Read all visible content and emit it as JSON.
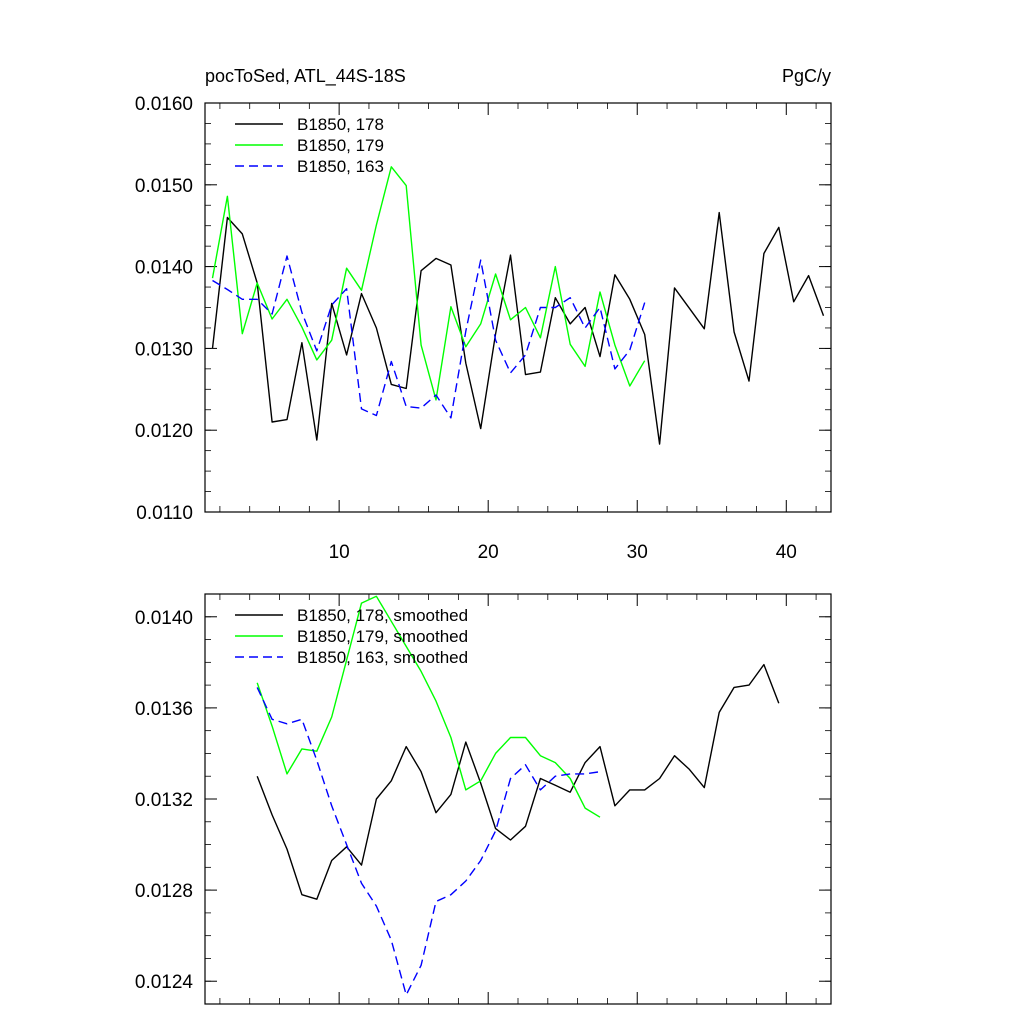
{
  "chart_data": [
    {
      "type": "line",
      "title": "pocToSed, ATL_44S-18S",
      "units": "PgC/y",
      "xlim": [
        1,
        43
      ],
      "ylim": [
        0.011,
        0.016
      ],
      "y_ticks": [
        "0.0110",
        "0.0120",
        "0.0130",
        "0.0140",
        "0.0150",
        "0.0160"
      ],
      "x_ticks": [
        "10",
        "20",
        "30",
        "40"
      ],
      "grid": false,
      "legend_position": "top-left",
      "series": [
        {
          "name": "B1850, 178",
          "color": "#000000",
          "dash": "solid",
          "x": [
            1.5,
            2.5,
            3.5,
            4.5,
            5.5,
            6.5,
            7.5,
            8.5,
            9.5,
            10.5,
            11.5,
            12.5,
            13.5,
            14.5,
            15.5,
            16.5,
            17.5,
            18.5,
            19.5,
            20.5,
            21.5,
            22.5,
            23.5,
            24.5,
            25.5,
            26.5,
            27.5,
            28.5,
            29.5,
            30.5,
            31.5,
            32.5,
            33.5,
            34.5,
            35.5,
            36.5,
            37.5,
            38.5,
            39.5,
            40.5,
            41.5,
            42.5
          ],
          "y": [
            0.013,
            0.0146,
            0.0144,
            0.0138,
            0.0121,
            0.01213,
            0.01307,
            0.01188,
            0.01355,
            0.01292,
            0.01367,
            0.01325,
            0.01256,
            0.01251,
            0.01395,
            0.0141,
            0.01402,
            0.01282,
            0.01202,
            0.01318,
            0.01414,
            0.01268,
            0.01271,
            0.01362,
            0.0133,
            0.0135,
            0.0129,
            0.0139,
            0.0136,
            0.01317,
            0.01183,
            0.01374,
            0.01349,
            0.01324,
            0.01466,
            0.0132,
            0.0126,
            0.01416,
            0.01448,
            0.01357,
            0.01389,
            0.0134
          ]
        },
        {
          "name": "B1850, 179",
          "color": "#00ff00",
          "dash": "solid",
          "x": [
            1.5,
            2.5,
            3.5,
            4.5,
            5.5,
            6.5,
            7.5,
            8.5,
            9.5,
            10.5,
            11.5,
            12.5,
            13.5,
            14.5,
            15.5,
            16.5,
            17.5,
            18.5,
            19.5,
            20.5,
            21.5,
            22.5,
            23.5,
            24.5,
            25.5,
            26.5,
            27.5,
            28.5,
            29.5,
            30.5
          ],
          "y": [
            0.01386,
            0.01486,
            0.01318,
            0.0138,
            0.01336,
            0.0136,
            0.01326,
            0.01286,
            0.0131,
            0.01398,
            0.01371,
            0.01451,
            0.01522,
            0.01499,
            0.01304,
            0.01237,
            0.01351,
            0.01302,
            0.0133,
            0.01391,
            0.01335,
            0.0135,
            0.01313,
            0.014,
            0.01305,
            0.01278,
            0.01369,
            0.01304,
            0.01254,
            0.01285
          ]
        },
        {
          "name": "B1850, 163",
          "color": "#0000ff",
          "dash": "dashed",
          "x": [
            1.5,
            2.5,
            3.5,
            4.5,
            5.5,
            6.5,
            7.5,
            8.5,
            9.5,
            10.5,
            11.5,
            12.5,
            13.5,
            14.5,
            15.5,
            16.5,
            17.5,
            18.5,
            19.5,
            20.5,
            21.5,
            22.5,
            23.5,
            24.5,
            25.5,
            26.5,
            27.5,
            28.5,
            29.5,
            30.5
          ],
          "y": [
            0.01383,
            0.01372,
            0.0136,
            0.0136,
            0.01342,
            0.01413,
            0.01344,
            0.01297,
            0.01353,
            0.01373,
            0.01226,
            0.01218,
            0.01284,
            0.01229,
            0.01227,
            0.01243,
            0.01215,
            0.01321,
            0.01408,
            0.0131,
            0.0127,
            0.01292,
            0.0135,
            0.0135,
            0.01362,
            0.01325,
            0.0135,
            0.01275,
            0.01298,
            0.01356
          ]
        }
      ]
    },
    {
      "type": "line",
      "xlim": [
        1,
        43
      ],
      "ylim": [
        0.0123,
        0.0141
      ],
      "y_ticks": [
        "0.0124",
        "0.0128",
        "0.0132",
        "0.0136",
        "0.0140"
      ],
      "grid": false,
      "legend_position": "top-left",
      "series": [
        {
          "name": "B1850, 178, smoothed",
          "color": "#000000",
          "dash": "solid",
          "x": [
            4.5,
            5.5,
            6.5,
            7.5,
            8.5,
            9.5,
            10.5,
            11.5,
            12.5,
            13.5,
            14.5,
            15.5,
            16.5,
            17.5,
            18.5,
            19.5,
            20.5,
            21.5,
            22.5,
            23.5,
            24.5,
            25.5,
            26.5,
            27.5,
            28.5,
            29.5,
            30.5,
            31.5,
            32.5,
            33.5,
            34.5,
            35.5,
            36.5,
            37.5,
            38.5,
            39.5
          ],
          "y": [
            0.0133,
            0.01313,
            0.01298,
            0.01278,
            0.01276,
            0.01293,
            0.01299,
            0.01291,
            0.0132,
            0.01328,
            0.01343,
            0.01332,
            0.01314,
            0.01322,
            0.01345,
            0.01327,
            0.01307,
            0.01302,
            0.01308,
            0.01329,
            0.01326,
            0.01323,
            0.01336,
            0.01343,
            0.01317,
            0.01324,
            0.01324,
            0.01329,
            0.01339,
            0.01333,
            0.01325,
            0.01358,
            0.01369,
            0.0137,
            0.01379,
            0.01362
          ]
        },
        {
          "name": "B1850, 179, smoothed",
          "color": "#00ff00",
          "dash": "solid",
          "x": [
            4.5,
            5.5,
            6.5,
            7.5,
            8.5,
            9.5,
            10.5,
            11.5,
            12.5,
            13.5,
            14.5,
            15.5,
            16.5,
            17.5,
            18.5,
            19.5,
            20.5,
            21.5,
            22.5,
            23.5,
            24.5,
            25.5,
            26.5,
            27.5
          ],
          "y": [
            0.01371,
            0.01352,
            0.01331,
            0.01342,
            0.01341,
            0.01356,
            0.01381,
            0.01406,
            0.01409,
            0.01398,
            0.01387,
            0.01376,
            0.01363,
            0.01347,
            0.01324,
            0.01328,
            0.0134,
            0.01347,
            0.01347,
            0.01339,
            0.01336,
            0.01329,
            0.01316,
            0.01312
          ]
        },
        {
          "name": "B1850, 163, smoothed",
          "color": "#0000ff",
          "dash": "dashed",
          "x": [
            4.5,
            5.5,
            6.5,
            7.5,
            8.5,
            9.5,
            10.5,
            11.5,
            12.5,
            13.5,
            14.5,
            15.5,
            16.5,
            17.5,
            18.5,
            19.5,
            20.5,
            21.5,
            22.5,
            23.5,
            24.5,
            25.5,
            26.5,
            27.5
          ],
          "y": [
            0.01369,
            0.01355,
            0.01353,
            0.01355,
            0.01337,
            0.01317,
            0.013,
            0.01283,
            0.01273,
            0.01258,
            0.01234,
            0.01247,
            0.01275,
            0.01278,
            0.01284,
            0.01293,
            0.01306,
            0.01329,
            0.01335,
            0.01324,
            0.0133,
            0.01331,
            0.01331,
            0.01332
          ]
        }
      ]
    }
  ]
}
